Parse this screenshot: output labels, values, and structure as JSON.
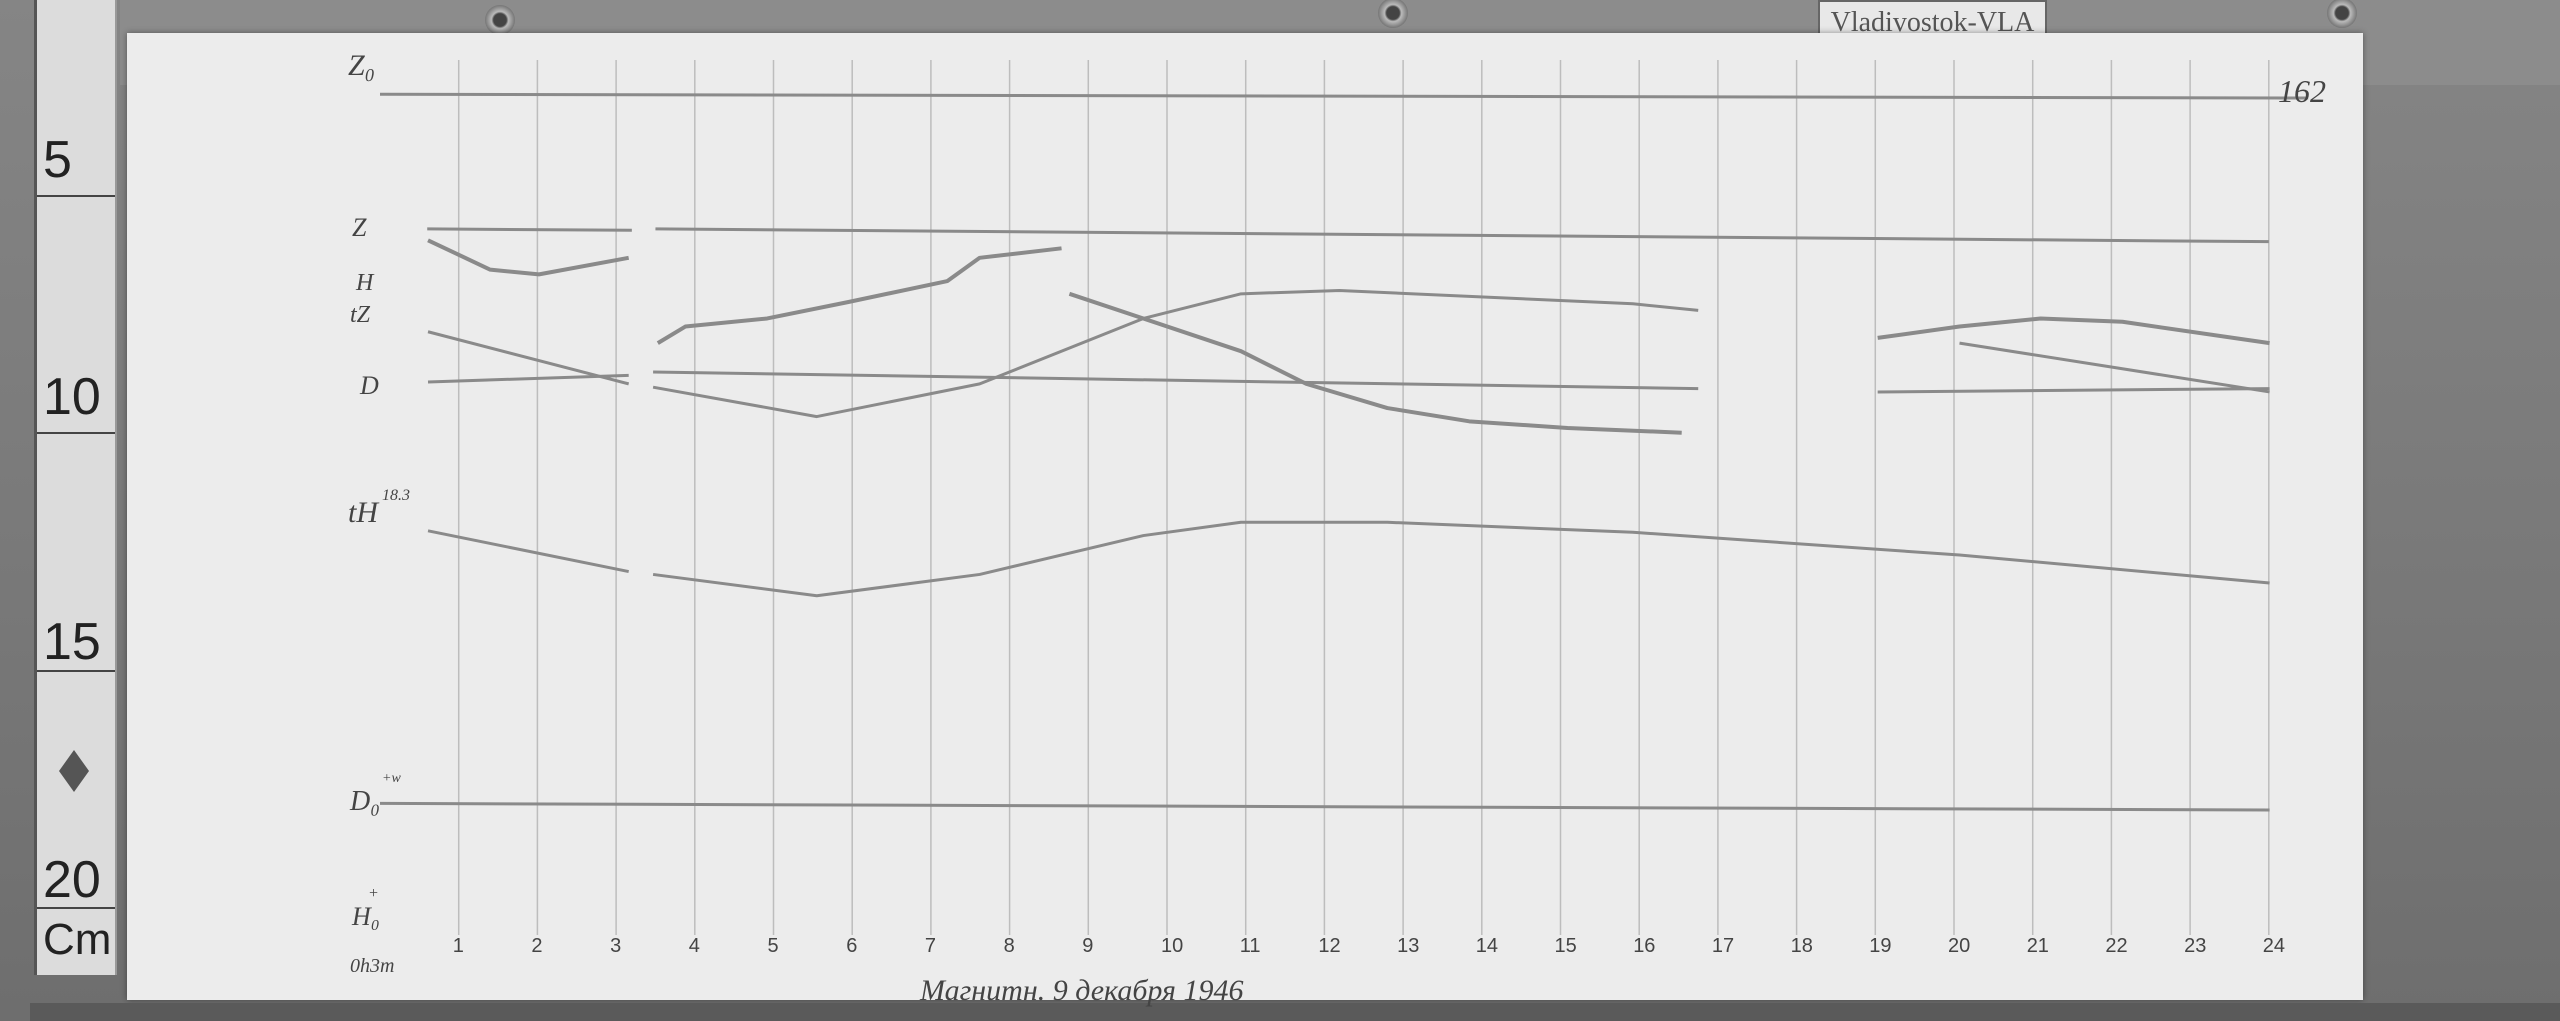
{
  "station_tag": "Vladivostok-VLA",
  "ruler": {
    "marks": [
      "5",
      "10",
      "15",
      "20"
    ],
    "unit": "Cm"
  },
  "sheet_number": "162",
  "handwritten_date": "Магнитн. 9 декабря 1946",
  "chart_data": {
    "type": "line",
    "xlabel": "",
    "ylabel": "",
    "x_start_label": "0h3m",
    "x_tick_labels": [
      "1",
      "2",
      "3",
      "4",
      "5",
      "6",
      "7",
      "8",
      "9",
      "10",
      "11",
      "12",
      "13",
      "14",
      "15",
      "16",
      "17",
      "18",
      "19",
      "20",
      "21",
      "22",
      "23",
      "24"
    ],
    "xlim": [
      0,
      24
    ],
    "ylim_cm": [
      2,
      21
    ],
    "grid": "vertical hourly lines",
    "colors": {
      "paper": "#ececec",
      "trace": "#8a8a8a",
      "grid": "#bdbdbd"
    },
    "trace_labels": {
      "Z0": "Z₀",
      "Z": "Z",
      "H": "H",
      "tZ": "tZ",
      "D": "D",
      "tH": "tH",
      "tH_value": "18.3",
      "D0": "D₀",
      "D0_arrow": "+w",
      "H0": "H₀",
      "H0_arrow": "+"
    },
    "series": [
      {
        "name": "Z0",
        "segments": [
          [
            [
              0,
              3.55
            ],
            [
              24.5,
              3.63
            ]
          ]
        ]
      },
      {
        "name": "Z",
        "segments": [
          [
            [
              0.6,
              6.39
            ],
            [
              3.2,
              6.42
            ]
          ],
          [
            [
              3.5,
              6.39
            ],
            [
              24,
              6.66
            ]
          ]
        ]
      },
      {
        "name": "H",
        "segments": [
          [
            [
              0.61,
              6.63
            ],
            [
              1.4,
              7.25
            ],
            [
              2.02,
              7.35
            ],
            [
              3.16,
              7.0
            ]
          ],
          [
            [
              3.53,
              8.8
            ],
            [
              3.88,
              8.45
            ],
            [
              4.92,
              8.28
            ],
            [
              5.96,
              7.93
            ],
            [
              7.21,
              7.49
            ],
            [
              7.62,
              7.0
            ],
            [
              8.66,
              6.8
            ]
          ],
          [
            [
              8.76,
              7.76
            ],
            [
              9.7,
              8.28
            ],
            [
              10.94,
              8.97
            ],
            [
              11.77,
              9.66
            ],
            [
              12.8,
              10.17
            ],
            [
              13.84,
              10.45
            ],
            [
              15.09,
              10.59
            ],
            [
              16.54,
              10.69
            ]
          ],
          [
            [
              19.03,
              8.69
            ],
            [
              20.07,
              8.45
            ],
            [
              21.1,
              8.28
            ],
            [
              22.14,
              8.35
            ],
            [
              24.01,
              8.8
            ]
          ]
        ]
      },
      {
        "name": "tZ",
        "segments": [
          [
            [
              0.61,
              8.56
            ],
            [
              3.16,
              9.66
            ]
          ],
          [
            [
              3.47,
              9.73
            ],
            [
              5.55,
              10.35
            ],
            [
              7.62,
              9.66
            ],
            [
              9.7,
              8.28
            ],
            [
              10.94,
              7.76
            ],
            [
              12.19,
              7.69
            ],
            [
              15.92,
              7.97
            ],
            [
              16.75,
              8.11
            ]
          ],
          [
            [
              20.07,
              8.8
            ],
            [
              24.01,
              9.83
            ]
          ]
        ]
      },
      {
        "name": "D",
        "segments": [
          [
            [
              0.61,
              9.62
            ],
            [
              3.16,
              9.48
            ]
          ],
          [
            [
              3.47,
              9.41
            ],
            [
              16.75,
              9.76
            ]
          ],
          [
            [
              19.03,
              9.83
            ],
            [
              24.01,
              9.76
            ]
          ]
        ]
      },
      {
        "name": "tH",
        "segments": [
          [
            [
              0.61,
              12.76
            ],
            [
              3.16,
              13.62
            ]
          ],
          [
            [
              3.47,
              13.68
            ],
            [
              5.55,
              14.13
            ],
            [
              7.62,
              13.68
            ],
            [
              9.7,
              12.86
            ],
            [
              10.94,
              12.58
            ],
            [
              12.8,
              12.58
            ],
            [
              15.92,
              12.79
            ],
            [
              20.07,
              13.27
            ],
            [
              24.01,
              13.86
            ]
          ]
        ]
      },
      {
        "name": "D0",
        "segments": [
          [
            [
              0,
              18.51
            ],
            [
              24.01,
              18.65
            ]
          ]
        ]
      }
    ]
  }
}
